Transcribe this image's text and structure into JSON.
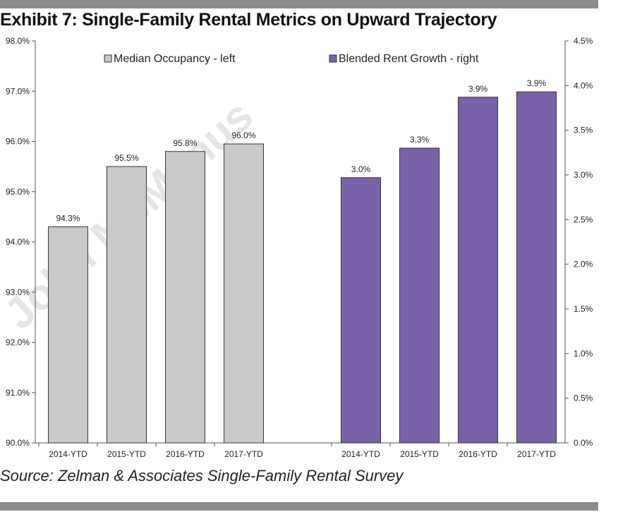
{
  "header": {
    "title": "Exhibit 7: Single-Family Rental Metrics on Upward Trajectory"
  },
  "footer": {
    "source": "Source: Zelman & Associates Single-Family Rental Survey"
  },
  "watermark": "John McManus",
  "chart_data": {
    "type": "bar",
    "title": "Exhibit 7: Single-Family Rental Metrics on Upward Trajectory",
    "grid": false,
    "legend_placement": "top",
    "left_axis": {
      "ylim": [
        90.0,
        98.0
      ],
      "ticks": [
        "90.0%",
        "91.0%",
        "92.0%",
        "93.0%",
        "94.0%",
        "95.0%",
        "96.0%",
        "97.0%",
        "98.0%"
      ]
    },
    "right_axis": {
      "ylim": [
        0.0,
        4.5
      ],
      "ticks": [
        "0.0%",
        "0.5%",
        "1.0%",
        "1.5%",
        "2.0%",
        "2.5%",
        "3.0%",
        "3.5%",
        "4.0%",
        "4.5%"
      ]
    },
    "series": [
      {
        "name": "Median Occupancy - left",
        "axis": "left",
        "color": "#c8c9c9",
        "categories": [
          "2014-YTD",
          "2015-YTD",
          "2016-YTD",
          "2017-YTD"
        ],
        "values": [
          94.3,
          95.5,
          95.8,
          95.95
        ],
        "labels": [
          "94.3%",
          "95.5%",
          "95.8%",
          "96.0%"
        ]
      },
      {
        "name": "Blended Rent Growth - right",
        "axis": "right",
        "color": "#7a62aa",
        "categories": [
          "2014-YTD",
          "2015-YTD",
          "2016-YTD",
          "2017-YTD"
        ],
        "values": [
          2.97,
          3.3,
          3.87,
          3.93
        ],
        "labels": [
          "3.0%",
          "3.3%",
          "3.9%",
          "3.9%"
        ]
      }
    ]
  }
}
